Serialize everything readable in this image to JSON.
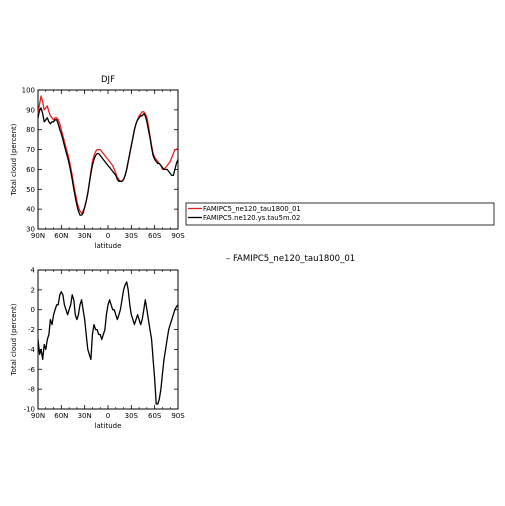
{
  "figure": {
    "diff_label": "– FAMIPC5_ne120_tau1800_01"
  },
  "chart_data": [
    {
      "type": "line",
      "title": "DJF",
      "xlabel": "latitude",
      "ylabel": "Total cloud (percent)",
      "xlim": [
        90,
        -90
      ],
      "ylim": [
        30,
        100
      ],
      "xticks": [
        {
          "value": 90,
          "label": "90N"
        },
        {
          "value": 60,
          "label": "60N"
        },
        {
          "value": 30,
          "label": "30N"
        },
        {
          "value": 0,
          "label": "0"
        },
        {
          "value": -30,
          "label": "30S"
        },
        {
          "value": -60,
          "label": "60S"
        },
        {
          "value": -90,
          "label": "90S"
        }
      ],
      "yticks": [
        30,
        40,
        50,
        60,
        70,
        80,
        90,
        100
      ],
      "legend_position": "right",
      "series": [
        {
          "name": "FAMIPC5_ne120_tau1800_01",
          "color": "#e8201c",
          "x": [
            90,
            88,
            86,
            84,
            82,
            80,
            78,
            76,
            74,
            72,
            70,
            68,
            66,
            64,
            62,
            60,
            58,
            56,
            54,
            52,
            50,
            48,
            46,
            44,
            42,
            40,
            38,
            36,
            34,
            32,
            30,
            28,
            26,
            24,
            22,
            20,
            18,
            16,
            14,
            12,
            10,
            8,
            6,
            4,
            2,
            0,
            -2,
            -4,
            -6,
            -8,
            -10,
            -12,
            -14,
            -16,
            -18,
            -20,
            -22,
            -24,
            -26,
            -28,
            -30,
            -32,
            -34,
            -36,
            -38,
            -40,
            -42,
            -44,
            -46,
            -48,
            -50,
            -52,
            -54,
            -56,
            -58,
            -60,
            -62,
            -64,
            -66,
            -68,
            -70,
            -72,
            -74,
            -76,
            -78,
            -80,
            -82,
            -84,
            -86,
            -88,
            -90
          ],
          "values": [
            88,
            93,
            97,
            94,
            90,
            91,
            92,
            89,
            87,
            86,
            85,
            86,
            86,
            85,
            83,
            80,
            77,
            74,
            71,
            68,
            65,
            61,
            57,
            52,
            48,
            44,
            41,
            39,
            38,
            39,
            41,
            44,
            48,
            53,
            59,
            64,
            67,
            69,
            70,
            70,
            70,
            69,
            68,
            67,
            66,
            65,
            64,
            63,
            62,
            60,
            58,
            56,
            55,
            54,
            54,
            55,
            57,
            60,
            64,
            68,
            72,
            76,
            80,
            83,
            85,
            87,
            88,
            89,
            89,
            88,
            86,
            82,
            77,
            72,
            68,
            66,
            65,
            64,
            63,
            62,
            60,
            60,
            61,
            62,
            63,
            64,
            66,
            68,
            70,
            70,
            71
          ]
        },
        {
          "name": "FAMIPC5.ne120.ys.tau5m.02",
          "color": "#000000",
          "x": [
            90,
            88,
            86,
            84,
            82,
            80,
            78,
            76,
            74,
            72,
            70,
            68,
            66,
            64,
            62,
            60,
            58,
            56,
            54,
            52,
            50,
            48,
            46,
            44,
            42,
            40,
            38,
            36,
            34,
            32,
            30,
            28,
            26,
            24,
            22,
            20,
            18,
            16,
            14,
            12,
            10,
            8,
            6,
            4,
            2,
            0,
            -2,
            -4,
            -6,
            -8,
            -10,
            -12,
            -14,
            -16,
            -18,
            -20,
            -22,
            -24,
            -26,
            -28,
            -30,
            -32,
            -34,
            -36,
            -38,
            -40,
            -42,
            -44,
            -46,
            -48,
            -50,
            -52,
            -54,
            -56,
            -58,
            -60,
            -62,
            -64,
            -66,
            -68,
            -70,
            -72,
            -74,
            -76,
            -78,
            -80,
            -82,
            -84,
            -86,
            -88,
            -90
          ],
          "values": [
            86,
            90,
            91,
            88,
            84,
            85,
            86,
            84,
            83,
            84,
            84,
            85,
            85,
            83,
            80,
            78,
            75,
            72,
            69,
            66,
            63,
            59,
            55,
            50,
            46,
            42,
            39,
            37,
            37,
            38,
            41,
            44,
            48,
            53,
            58,
            62,
            65,
            67,
            68,
            68,
            67,
            66,
            65,
            64,
            63,
            62,
            61,
            60,
            59,
            58,
            57,
            55,
            54,
            54,
            54,
            55,
            57,
            60,
            64,
            68,
            72,
            76,
            80,
            83,
            85,
            86,
            87,
            87,
            88,
            87,
            84,
            80,
            76,
            71,
            67,
            65,
            64,
            63,
            63,
            62,
            61,
            60,
            60,
            60,
            59,
            58,
            57,
            57,
            60,
            63,
            65
          ]
        }
      ]
    },
    {
      "type": "line",
      "title": "",
      "xlabel": "latitude",
      "ylabel": "Total cloud (percent)",
      "xlim": [
        90,
        -90
      ],
      "ylim": [
        -10,
        4
      ],
      "xticks": [
        {
          "value": 90,
          "label": "90N"
        },
        {
          "value": 60,
          "label": "60N"
        },
        {
          "value": 30,
          "label": "30N"
        },
        {
          "value": 0,
          "label": "0"
        },
        {
          "value": -30,
          "label": "30S"
        },
        {
          "value": -60,
          "label": "60S"
        },
        {
          "value": -90,
          "label": "90S"
        }
      ],
      "yticks": [
        -10,
        -8,
        -6,
        -4,
        -2,
        0,
        2,
        4
      ],
      "series": [
        {
          "name": "",
          "color": "#000000",
          "x": [
            90,
            88,
            86,
            84,
            82,
            80,
            78,
            76,
            74,
            72,
            70,
            68,
            66,
            64,
            62,
            60,
            58,
            56,
            54,
            52,
            50,
            48,
            46,
            44,
            42,
            40,
            38,
            36,
            34,
            32,
            30,
            28,
            26,
            24,
            22,
            20,
            18,
            16,
            14,
            12,
            10,
            8,
            6,
            4,
            2,
            0,
            -2,
            -4,
            -6,
            -8,
            -10,
            -12,
            -14,
            -16,
            -18,
            -20,
            -22,
            -24,
            -26,
            -28,
            -30,
            -32,
            -34,
            -36,
            -38,
            -40,
            -42,
            -44,
            -46,
            -48,
            -50,
            -52,
            -54,
            -56,
            -58,
            -60,
            -62,
            -64,
            -66,
            -68,
            -70,
            -72,
            -74,
            -76,
            -78,
            -80,
            -82,
            -84,
            -86,
            -88,
            -90
          ],
          "values": [
            -3,
            -4.5,
            -4,
            -5,
            -3.5,
            -4,
            -3,
            -2.5,
            -1,
            -1.5,
            -0.5,
            0,
            0.5,
            0.5,
            1.5,
            1.8,
            1.5,
            0.5,
            0,
            -0.5,
            0,
            0.5,
            1.5,
            1,
            -0.5,
            -1,
            -0.5,
            0.5,
            1,
            0,
            -1,
            -2.5,
            -4,
            -4.5,
            -5,
            -2.5,
            -1.5,
            -2,
            -2,
            -2.5,
            -2.5,
            -3,
            -2.5,
            -2,
            -0.5,
            0.5,
            1,
            0.5,
            0,
            0,
            -0.5,
            -1,
            -0.5,
            0,
            1,
            2,
            2.5,
            2.8,
            2,
            0.5,
            -0.5,
            -1,
            -1.5,
            -1,
            -0.5,
            -1,
            -1.5,
            -1,
            0,
            1,
            0,
            -1,
            -2,
            -3,
            -5,
            -7,
            -9.5,
            -9.5,
            -9,
            -8,
            -6.5,
            -5,
            -4,
            -3,
            -2,
            -1.5,
            -1,
            -0.5,
            0,
            0.3,
            0.5
          ]
        }
      ]
    }
  ]
}
